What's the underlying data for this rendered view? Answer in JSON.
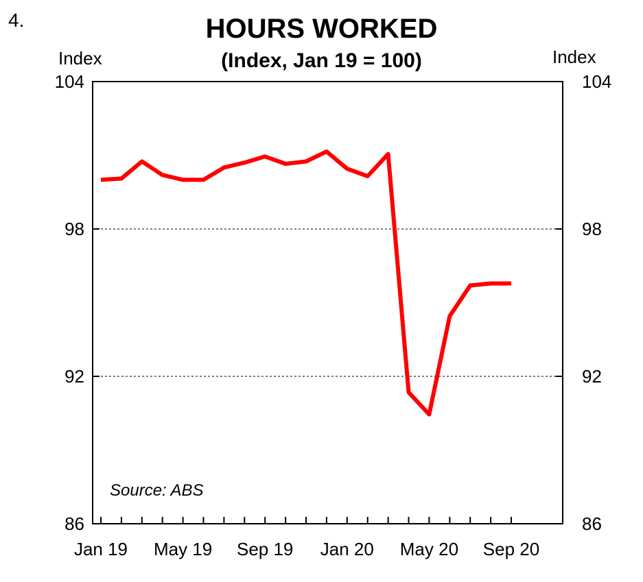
{
  "chart_number": "4.",
  "chart_data": {
    "type": "line",
    "title": "HOURS WORKED",
    "subtitle": "(Index, Jan 19 = 100)",
    "ylabel_left": "Index",
    "ylabel_right": "Index",
    "source": "Source: ABS",
    "ylim": [
      86,
      104
    ],
    "yticks": [
      "86",
      "92",
      "98",
      "104"
    ],
    "x_tick_labels": [
      "Jan 19",
      "May 19",
      "Sep 19",
      "Jan 20",
      "May 20",
      "Sep 20"
    ],
    "grid": "dashed horizontal at 92 and 98",
    "x": [
      "Jan 19",
      "Feb 19",
      "Mar 19",
      "Apr 19",
      "May 19",
      "Jun 19",
      "Jul 19",
      "Aug 19",
      "Sep 19",
      "Oct 19",
      "Nov 19",
      "Dec 19",
      "Jan 20",
      "Feb 20",
      "Mar 20",
      "Apr 20",
      "May 20",
      "Jun 20",
      "Jul 20",
      "Aug 20",
      "Sep 20"
    ],
    "series": [
      {
        "color": "#ff0000",
        "values": [
          100.0,
          100.05,
          100.75,
          100.2,
          100.0,
          100.0,
          100.5,
          100.7,
          100.95,
          100.65,
          100.75,
          101.15,
          100.45,
          100.15,
          101.05,
          91.35,
          90.45,
          94.45,
          95.7,
          95.78,
          95.78
        ]
      }
    ]
  }
}
